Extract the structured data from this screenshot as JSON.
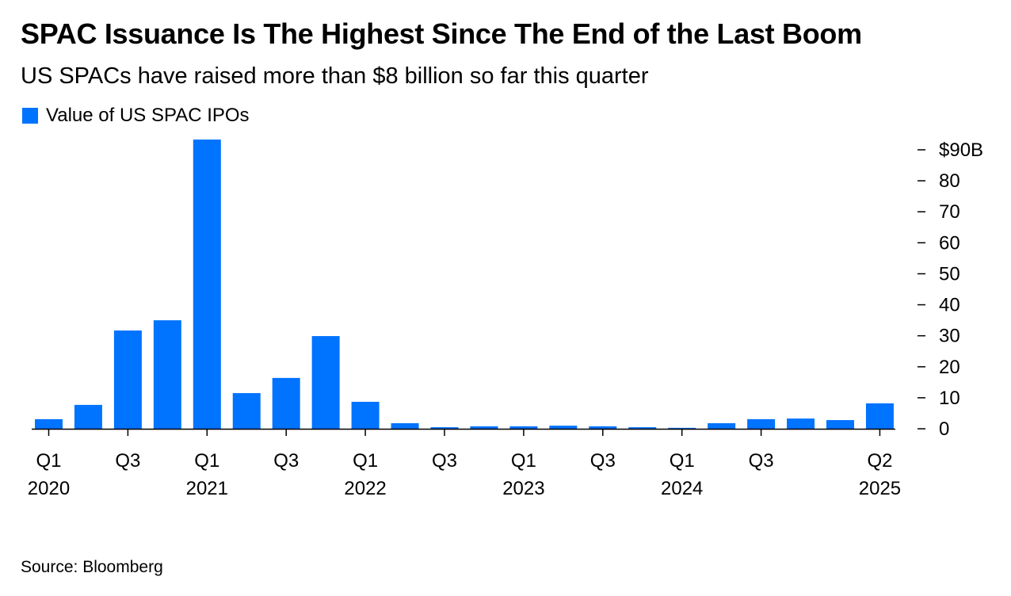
{
  "title": "SPAC Issuance Is The Highest Since The End of the Last Boom",
  "subtitle": "US SPACs have raised more than $8 billion so far this quarter",
  "source": "Source: Bloomberg",
  "colors": {
    "bar": "#0073ff"
  },
  "chart_data": {
    "type": "bar",
    "title": "SPAC Issuance Is The Highest Since The End of the Last Boom",
    "legend": [
      {
        "label": "Value of US SPAC IPOs",
        "position": "top-left"
      }
    ],
    "categories": [
      "Q1 2020",
      "Q2 2020",
      "Q3 2020",
      "Q4 2020",
      "Q1 2021",
      "Q2 2021",
      "Q3 2021",
      "Q4 2021",
      "Q1 2022",
      "Q2 2022",
      "Q3 2022",
      "Q4 2022",
      "Q1 2023",
      "Q2 2023",
      "Q3 2023",
      "Q4 2023",
      "Q1 2024",
      "Q2 2024",
      "Q3 2024",
      "Q4 2024",
      "Q1 2025",
      "Q2 2025"
    ],
    "values": [
      3.1,
      7.7,
      31.7,
      35.0,
      93.3,
      11.5,
      16.4,
      29.9,
      8.7,
      1.8,
      0.5,
      0.8,
      0.8,
      1.0,
      0.8,
      0.5,
      0.3,
      1.8,
      3.1,
      3.3,
      2.8,
      8.2
    ],
    "x_tick_labels": [
      {
        "index": 0,
        "line1": "Q1",
        "line2": "2020"
      },
      {
        "index": 2,
        "line1": "Q3",
        "line2": ""
      },
      {
        "index": 4,
        "line1": "Q1",
        "line2": "2021"
      },
      {
        "index": 6,
        "line1": "Q3",
        "line2": ""
      },
      {
        "index": 8,
        "line1": "Q1",
        "line2": "2022"
      },
      {
        "index": 10,
        "line1": "Q3",
        "line2": ""
      },
      {
        "index": 12,
        "line1": "Q1",
        "line2": "2023"
      },
      {
        "index": 14,
        "line1": "Q3",
        "line2": ""
      },
      {
        "index": 16,
        "line1": "Q1",
        "line2": "2024"
      },
      {
        "index": 18,
        "line1": "Q3",
        "line2": ""
      },
      {
        "index": 21,
        "line1": "Q2",
        "line2": "2025"
      }
    ],
    "y_ticks": [
      {
        "value": 0,
        "label": "0"
      },
      {
        "value": 10,
        "label": "10"
      },
      {
        "value": 20,
        "label": "20"
      },
      {
        "value": 30,
        "label": "30"
      },
      {
        "value": 40,
        "label": "40"
      },
      {
        "value": 50,
        "label": "50"
      },
      {
        "value": 60,
        "label": "60"
      },
      {
        "value": 70,
        "label": "70"
      },
      {
        "value": 80,
        "label": "80"
      },
      {
        "value": 90,
        "label": "$90B"
      }
    ],
    "ylim": [
      0,
      90
    ],
    "xlabel": "",
    "ylabel": "",
    "grid": false
  }
}
